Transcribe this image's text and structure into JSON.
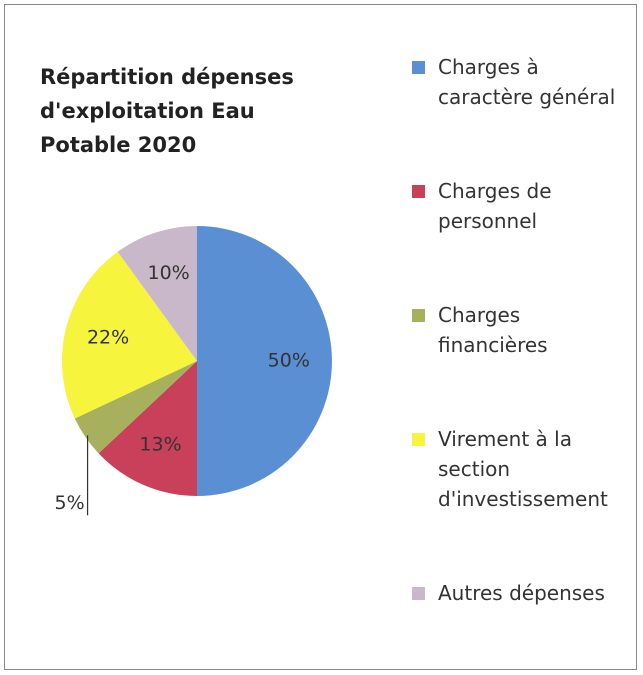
{
  "chart_data": {
    "type": "pie",
    "title": "Répartition dépenses d'exploitation Eau Potable 2020",
    "categories": [
      "Charges à caractère général",
      "Charges de personnel",
      "Charges financières",
      "Virement à la section d'investissement",
      "Autres dépenses"
    ],
    "values": [
      50,
      13,
      5,
      22,
      10
    ],
    "value_labels": [
      "50%",
      "13%",
      "5%",
      "22%",
      "10%"
    ],
    "colors": [
      "#5b8fd3",
      "#c8405a",
      "#a7b05c",
      "#f6f43c",
      "#c8b8c9"
    ],
    "legend": "right"
  }
}
